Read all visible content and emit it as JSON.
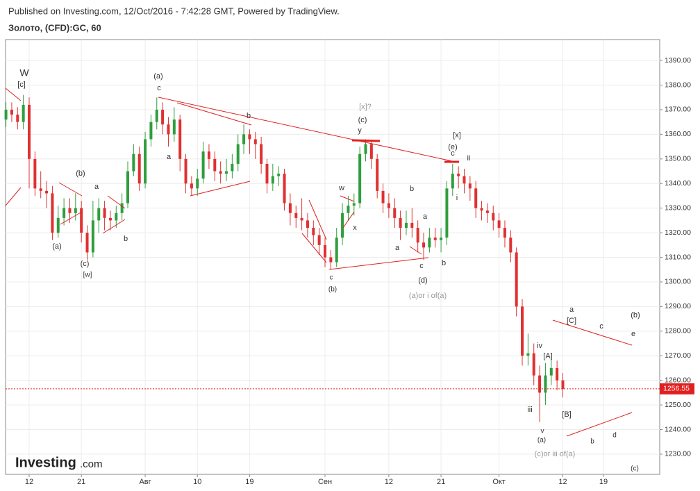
{
  "header": {
    "published": "Published on Investing.com, 12/Oct/2016 - 7:42:28 GMT, Powered by TradingView.",
    "symbol": "Золото, (CFD):GC, 60"
  },
  "logo": {
    "brand": "Investing",
    "suffix": ".com"
  },
  "chart_data": {
    "type": "candlestick",
    "x": [
      -4,
      -3,
      -2,
      -1,
      0,
      1,
      2,
      3,
      4,
      5,
      6,
      7,
      8,
      9,
      10,
      11,
      12,
      13,
      14,
      15,
      16,
      17,
      18,
      19,
      20,
      21,
      22,
      23,
      24,
      25,
      26,
      27,
      28,
      29,
      30,
      31,
      32,
      33,
      34,
      35,
      36,
      37,
      38,
      39,
      40,
      41,
      42,
      43,
      44,
      45,
      46,
      47,
      48,
      49,
      50,
      51,
      52,
      53,
      54,
      55,
      56,
      57,
      58,
      59,
      60,
      61,
      62,
      63,
      64,
      65,
      66,
      67,
      68,
      69,
      70,
      71,
      72,
      73,
      74,
      75,
      76,
      77,
      78,
      79,
      80,
      81,
      82,
      83,
      84,
      85,
      86,
      87,
      88,
      89,
      90,
      91,
      92
    ],
    "open": [
      1366,
      1370,
      1368,
      1365,
      1372,
      1350,
      1338,
      1337,
      1336,
      1320,
      1326,
      1330,
      1328,
      1330,
      1320,
      1312,
      1325,
      1330,
      1326,
      1325,
      1328,
      1332,
      1345,
      1352,
      1340,
      1358,
      1365,
      1370,
      1364,
      1360,
      1366,
      1350,
      1340,
      1338,
      1342,
      1353,
      1350,
      1345,
      1344,
      1345,
      1348,
      1356,
      1360,
      1358,
      1356,
      1348,
      1340,
      1343,
      1344,
      1332,
      1328,
      1326,
      1325,
      1322,
      1319,
      1315,
      1310,
      1308,
      1318,
      1328,
      1331,
      1332,
      1352,
      1356,
      1350,
      1337,
      1332,
      1330,
      1326,
      1322,
      1324,
      1322,
      1316,
      1314,
      1318,
      1317,
      1318,
      1338,
      1344,
      1343,
      1340,
      1338,
      1330,
      1329,
      1328,
      1325,
      1322,
      1318,
      1312,
      1290,
      1270,
      1271,
      1262,
      1255,
      1262,
      1265,
      1260
    ],
    "high": [
      1373,
      1373,
      1371,
      1376,
      1375,
      1353,
      1345,
      1341,
      1339,
      1331,
      1334,
      1334,
      1336,
      1333,
      1323,
      1333,
      1334,
      1333,
      1329,
      1331,
      1336,
      1349,
      1356,
      1355,
      1361,
      1368,
      1375,
      1373,
      1367,
      1371,
      1368,
      1352,
      1343,
      1346,
      1357,
      1356,
      1353,
      1349,
      1350,
      1352,
      1360,
      1364,
      1362,
      1361,
      1359,
      1350,
      1348,
      1347,
      1346,
      1336,
      1331,
      1334,
      1328,
      1325,
      1322,
      1318,
      1313,
      1322,
      1332,
      1335,
      1336,
      1355,
      1358,
      1357,
      1352,
      1340,
      1336,
      1334,
      1329,
      1329,
      1330,
      1325,
      1320,
      1322,
      1322,
      1322,
      1341,
      1348,
      1347,
      1346,
      1343,
      1341,
      1333,
      1332,
      1331,
      1328,
      1325,
      1321,
      1314,
      1293,
      1279,
      1275,
      1266,
      1267,
      1268,
      1268,
      1263
    ],
    "low": [
      1363,
      1365,
      1362,
      1362,
      1338,
      1335,
      1334,
      1330,
      1317,
      1318,
      1323,
      1324,
      1325,
      1316,
      1309,
      1310,
      1320,
      1321,
      1321,
      1322,
      1325,
      1330,
      1343,
      1337,
      1338,
      1355,
      1362,
      1360,
      1355,
      1357,
      1345,
      1336,
      1335,
      1335,
      1340,
      1346,
      1341,
      1340,
      1341,
      1342,
      1345,
      1352,
      1352,
      1350,
      1344,
      1336,
      1337,
      1339,
      1329,
      1323,
      1322,
      1321,
      1318,
      1315,
      1311,
      1306,
      1305,
      1306,
      1315,
      1325,
      1327,
      1330,
      1349,
      1346,
      1334,
      1328,
      1326,
      1322,
      1317,
      1319,
      1318,
      1312,
      1309,
      1312,
      1314,
      1312,
      1315,
      1335,
      1338,
      1336,
      1333,
      1326,
      1325,
      1324,
      1321,
      1318,
      1314,
      1308,
      1286,
      1266,
      1266,
      1258,
      1243,
      1250,
      1258,
      1256,
      1253
    ],
    "close": [
      1370,
      1368,
      1365,
      1372,
      1350,
      1338,
      1337,
      1336,
      1320,
      1326,
      1330,
      1328,
      1330,
      1320,
      1312,
      1325,
      1330,
      1326,
      1325,
      1328,
      1332,
      1345,
      1352,
      1340,
      1358,
      1365,
      1370,
      1364,
      1360,
      1366,
      1350,
      1340,
      1338,
      1342,
      1353,
      1350,
      1345,
      1344,
      1345,
      1348,
      1356,
      1360,
      1358,
      1356,
      1348,
      1340,
      1343,
      1344,
      1332,
      1328,
      1326,
      1325,
      1322,
      1319,
      1315,
      1310,
      1308,
      1318,
      1328,
      1331,
      1332,
      1352,
      1356,
      1350,
      1337,
      1332,
      1330,
      1326,
      1322,
      1324,
      1322,
      1316,
      1314,
      1318,
      1317,
      1318,
      1338,
      1344,
      1343,
      1340,
      1338,
      1330,
      1329,
      1328,
      1325,
      1322,
      1318,
      1312,
      1290,
      1270,
      1271,
      1262,
      1255,
      1262,
      1265,
      1260,
      1256.55
    ],
    "up_color": "#2e9e3c",
    "down_color": "#e03030",
    "last_price": 1256.55,
    "last_price_color": "#e02020",
    "xlim": [
      -4.07,
      108.7
    ],
    "ylim": [
      1221.8,
      1398.5
    ],
    "xticks": [
      {
        "value": 0,
        "label": "12"
      },
      {
        "value": 9,
        "label": "21"
      },
      {
        "value": 20,
        "label": "Авг"
      },
      {
        "value": 29,
        "label": "10"
      },
      {
        "value": 38,
        "label": "19"
      },
      {
        "value": 51,
        "label": "Сен"
      },
      {
        "value": 62,
        "label": "12"
      },
      {
        "value": 71,
        "label": "21"
      },
      {
        "value": 81,
        "label": "Окт"
      },
      {
        "value": 92,
        "label": "12"
      },
      {
        "value": 99,
        "label": "19"
      }
    ],
    "yticks": [
      {
        "value": 1230,
        "label": "1230.00"
      },
      {
        "value": 1240,
        "label": "1240.00"
      },
      {
        "value": 1250,
        "label": "1250.00"
      },
      {
        "value": 1260,
        "label": "1260.00"
      },
      {
        "value": 1270,
        "label": "1270.00"
      },
      {
        "value": 1280,
        "label": "1280.00"
      },
      {
        "value": 1290,
        "label": "1290.00"
      },
      {
        "value": 1300,
        "label": "1300.00"
      },
      {
        "value": 1310,
        "label": "1310.00"
      },
      {
        "value": 1320,
        "label": "1320.00"
      },
      {
        "value": 1330,
        "label": "1330.00"
      },
      {
        "value": 1340,
        "label": "1340.00"
      },
      {
        "value": 1350,
        "label": "1350.00"
      },
      {
        "value": 1360,
        "label": "1360.00"
      },
      {
        "value": 1370,
        "label": "1370.00"
      },
      {
        "value": 1380,
        "label": "1380.00"
      },
      {
        "value": 1390,
        "label": "1390.00"
      }
    ],
    "grid": true,
    "annotations": [
      "W",
      "[c]",
      "(a)",
      "c",
      "b",
      "a",
      "(b)",
      "a",
      "b",
      "(a)",
      "(c)",
      "[w]",
      "[x]?",
      "(c)",
      "y",
      "[x]",
      "(e)",
      "c",
      "ii",
      "i",
      "w",
      "x",
      "b",
      "a",
      "a",
      "c",
      "b",
      "(d)",
      "(a)or i of(a)",
      "c",
      "(b)",
      "a",
      "[C]",
      "c",
      "(b)",
      "e",
      "iv",
      "[A]",
      "iii",
      "[B]",
      "v",
      "(a)",
      "b",
      "d",
      "(c)or iii of(a)",
      "(c)"
    ]
  }
}
